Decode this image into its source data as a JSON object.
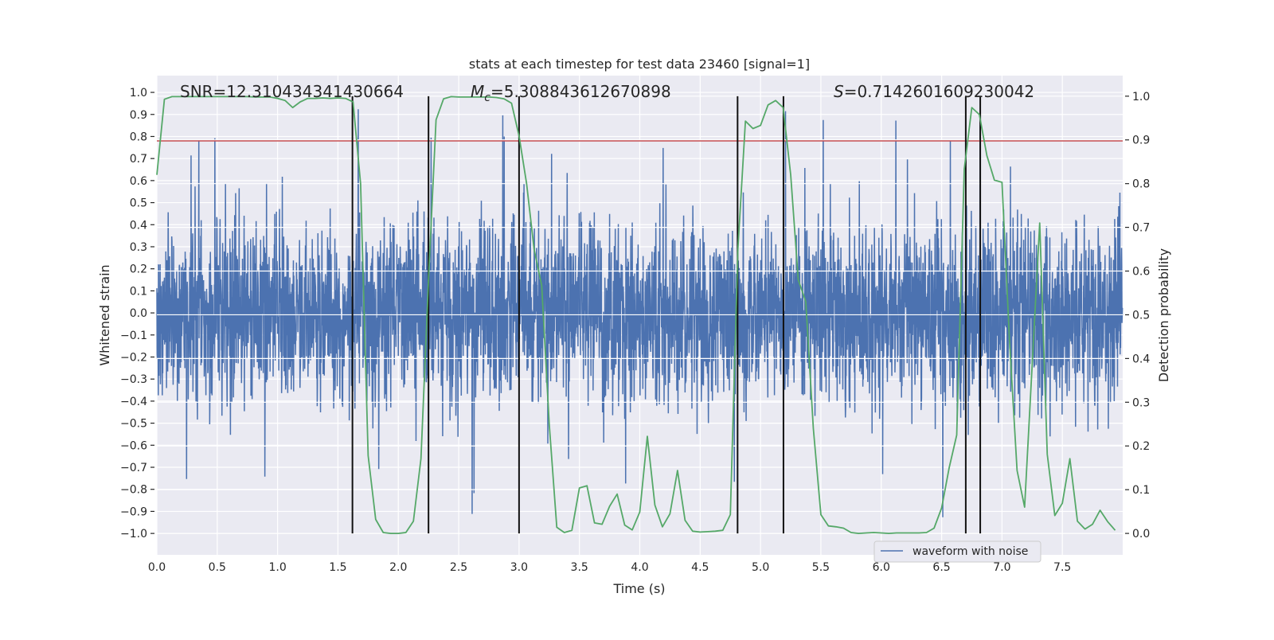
{
  "chart_data": {
    "type": "line",
    "title": "stats at each timestep for test data 23460 [signal=1]",
    "xlabel": "Time (s)",
    "ylabel": "Whitened strain",
    "y2label": "Detection probability",
    "xlim": [
      0,
      8.0
    ],
    "ylim": [
      -1.097,
      1.076
    ],
    "y2lim": [
      -0.049,
      1.047
    ],
    "xticks": [
      "0.0",
      "0.5",
      "1.0",
      "1.5",
      "2.0",
      "2.5",
      "3.0",
      "3.5",
      "4.0",
      "4.5",
      "5.0",
      "5.5",
      "6.0",
      "6.5",
      "7.0",
      "7.5"
    ],
    "yticks": [
      "1.0",
      "0.9",
      "0.8",
      "0.7",
      "0.6",
      "0.5",
      "0.4",
      "0.3",
      "0.2",
      "0.1",
      "0.0",
      "−0.1",
      "−0.2",
      "−0.3",
      "−0.4",
      "−0.5",
      "−0.6",
      "−0.7",
      "−0.8",
      "−0.9",
      "−1.0"
    ],
    "y2ticks": [
      "1.0",
      "0.9",
      "0.8",
      "0.7",
      "0.6",
      "0.5",
      "0.4",
      "0.3",
      "0.2",
      "0.1",
      "0.0"
    ],
    "grid": true,
    "annotations": {
      "snr": "SNR=12.310434341430664",
      "mc_symbol": "M",
      "mc_sub": "c",
      "mc_value": "=5.308843612670898",
      "s_symbol": "S",
      "s_value": "=0.7142601609230042"
    },
    "legend": {
      "placement": "lower-right",
      "entries": [
        "waveform with noise"
      ]
    },
    "waveform": {
      "name": "waveform with noise",
      "color": "#4c72b0",
      "description_range": [
        -1.0,
        0.93
      ],
      "typical_band": [
        -0.38,
        0.38
      ]
    },
    "threshold": {
      "value": 0.78,
      "axis": "left",
      "color": "#c44e52"
    },
    "detection_probability": {
      "color": "#55a868",
      "dt": 0.0625,
      "values": [
        0.82,
        0.993,
        0.999,
        0.999,
        0.999,
        0.999,
        0.999,
        0.999,
        0.999,
        0.999,
        0.999,
        0.999,
        0.999,
        0.998,
        0.998,
        0.998,
        0.995,
        0.99,
        0.974,
        0.987,
        0.995,
        0.995,
        0.996,
        0.995,
        0.996,
        0.995,
        0.987,
        0.8,
        0.178,
        0.032,
        0.002,
        0.0,
        0.0,
        0.002,
        0.028,
        0.171,
        0.58,
        0.946,
        0.994,
        0.999,
        0.998,
        0.998,
        0.998,
        0.998,
        0.998,
        0.997,
        0.994,
        0.984,
        0.909,
        0.8,
        0.649,
        0.567,
        0.25,
        0.014,
        0.002,
        0.007,
        0.104,
        0.109,
        0.024,
        0.021,
        0.062,
        0.09,
        0.019,
        0.008,
        0.049,
        0.222,
        0.065,
        0.015,
        0.045,
        0.144,
        0.03,
        0.005,
        0.003,
        0.004,
        0.005,
        0.007,
        0.043,
        0.65,
        0.943,
        0.926,
        0.933,
        0.98,
        0.99,
        0.974,
        0.82,
        0.58,
        0.53,
        0.24,
        0.043,
        0.017,
        0.015,
        0.012,
        0.002,
        0.0,
        0.001,
        0.002,
        0.001,
        0.0,
        0.001,
        0.001,
        0.001,
        0.001,
        0.002,
        0.012,
        0.058,
        0.15,
        0.225,
        0.833,
        0.974,
        0.958,
        0.864,
        0.808,
        0.803,
        0.44,
        0.144,
        0.06,
        0.385,
        0.71,
        0.181,
        0.041,
        0.069,
        0.171,
        0.028,
        0.01,
        0.021,
        0.053,
        0.027,
        0.007
      ]
    },
    "event_markers_s": [
      1.62,
      2.25,
      3.0,
      4.81,
      5.19,
      6.7,
      6.82
    ]
  }
}
